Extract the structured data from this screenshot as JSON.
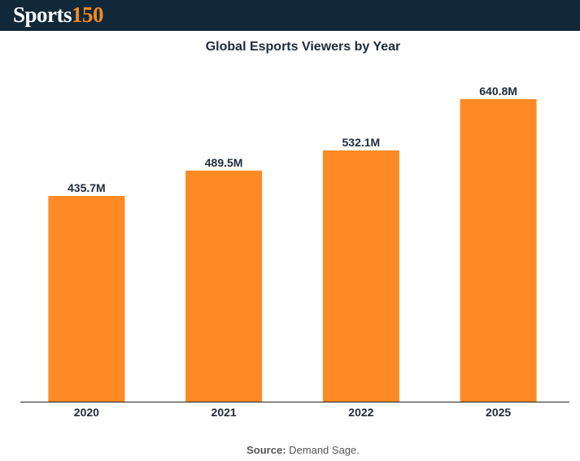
{
  "header": {
    "logo_word": "Sports",
    "logo_number": "150",
    "background_color": "#112838",
    "accent_color": "#f58a20"
  },
  "source": {
    "label": "Source:",
    "text": " Demand Sage."
  },
  "chart_data": {
    "type": "bar",
    "title": "Global Esports Viewers by Year",
    "xlabel": "",
    "ylabel": "",
    "categories": [
      "2020",
      "2021",
      "2022",
      "2025"
    ],
    "values": [
      435.7,
      489.5,
      532.1,
      640.8
    ],
    "value_labels": [
      "435.7M",
      "489.5M",
      "532.1M",
      "640.8M"
    ],
    "unit": "M",
    "ylim": [
      0,
      720
    ],
    "grid": false,
    "legend": "none",
    "bar_color": "#fd8a24"
  }
}
